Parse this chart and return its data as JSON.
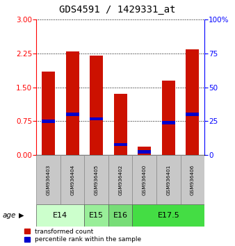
{
  "title": "GDS4591 / 1429331_at",
  "samples": [
    "GSM936403",
    "GSM936404",
    "GSM936405",
    "GSM936402",
    "GSM936400",
    "GSM936401",
    "GSM936406"
  ],
  "red_values": [
    1.85,
    2.3,
    2.2,
    1.35,
    0.18,
    1.65,
    2.35
  ],
  "blue_values": [
    0.75,
    0.9,
    0.8,
    0.23,
    0.07,
    0.72,
    0.9
  ],
  "ylim_left": [
    0,
    3
  ],
  "ylim_right": [
    0,
    100
  ],
  "yticks_left": [
    0,
    0.75,
    1.5,
    2.25,
    3
  ],
  "yticks_right": [
    0,
    25,
    50,
    75,
    100
  ],
  "ytick_labels_right": [
    "0",
    "25",
    "50",
    "75",
    "100%"
  ],
  "bar_color": "#cc1100",
  "blue_color": "#0000cc",
  "bar_width": 0.55,
  "age_groups": [
    {
      "label": "E14",
      "start": 0,
      "end": 1,
      "color": "#ccffcc"
    },
    {
      "label": "E15",
      "start": 2,
      "end": 2,
      "color": "#99ee99"
    },
    {
      "label": "E16",
      "start": 3,
      "end": 3,
      "color": "#77dd77"
    },
    {
      "label": "E17.5",
      "start": 4,
      "end": 6,
      "color": "#44dd44"
    }
  ],
  "sample_bg_color": "#c8c8c8",
  "legend_red_label": "transformed count",
  "legend_blue_label": "percentile rank within the sample",
  "age_label": "age",
  "title_fontsize": 10
}
